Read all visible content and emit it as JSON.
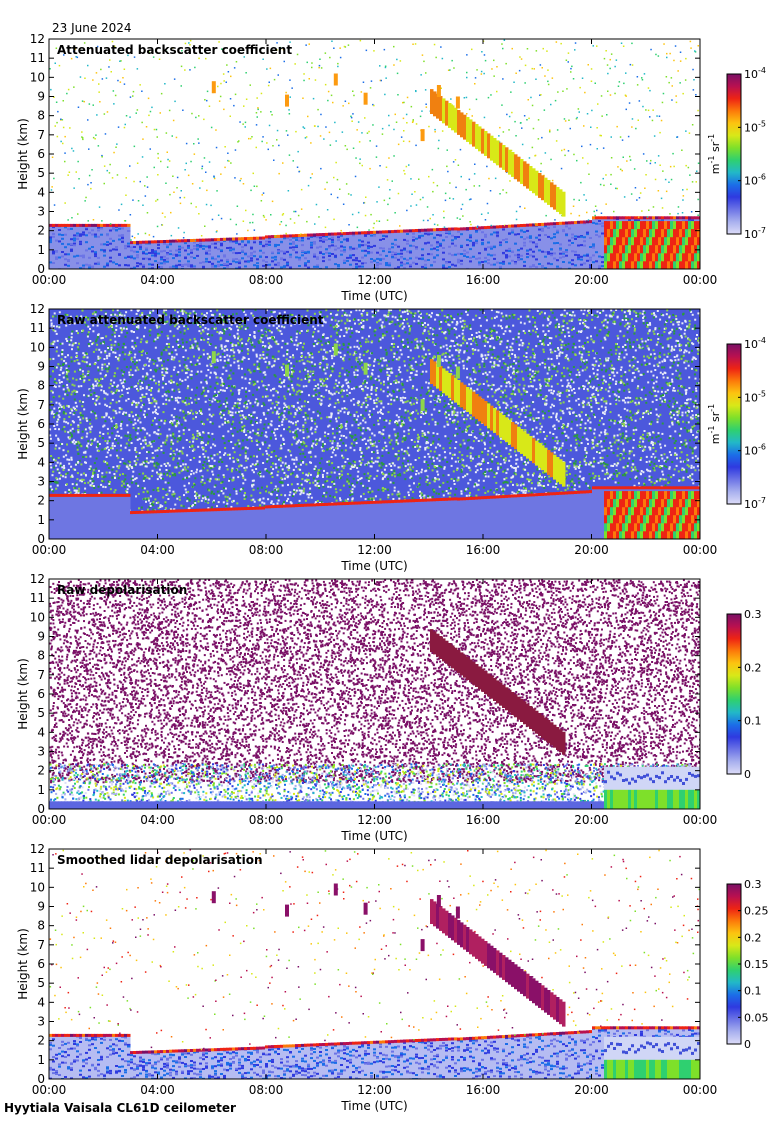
{
  "date": "23 June 2024",
  "footer": "Hyytiala Vaisala CL61D ceilometer",
  "colors": {
    "spectrum": [
      "#dcdcf8",
      "#a8b0ee",
      "#6c74e6",
      "#2f3ae0",
      "#1b6ee8",
      "#22b8c8",
      "#2fd070",
      "#7ee02a",
      "#d8e818",
      "#fcc410",
      "#fc7a0a",
      "#ee2414",
      "#b81050",
      "#7a1066"
    ],
    "frame": "#000000",
    "background": "#ffffff"
  },
  "chart_data": [
    {
      "type": "heatmap",
      "title": "Attenuated backscatter coefficient",
      "xlabel": "Time (UTC)",
      "ylabel": "Height (km)",
      "x_ticks": [
        "00:00",
        "04:00",
        "08:00",
        "12:00",
        "16:00",
        "20:00",
        "00:00"
      ],
      "x_range_hours": [
        0,
        24
      ],
      "y_ticks": [
        "0",
        "1",
        "2",
        "3",
        "4",
        "5",
        "6",
        "7",
        "8",
        "9",
        "10",
        "11",
        "12"
      ],
      "y_range_km": [
        0,
        12
      ],
      "colorbar": {
        "scale": "log",
        "ticks": [
          "10^-7",
          "10^-6",
          "10^-5",
          "10^-4"
        ],
        "tick_values": [
          -7,
          -6,
          -5,
          -4
        ],
        "range": [
          -7,
          -4
        ],
        "label": "m^-1 sr^-1",
        "label_base": "m",
        "label_exp1": "-1",
        "label_mid": " sr",
        "label_exp2": "-1"
      },
      "mode": "bsc"
    },
    {
      "type": "heatmap",
      "title": "Raw attenuated backscatter coefficient",
      "xlabel": "Time (UTC)",
      "ylabel": "Height (km)",
      "x_ticks": [
        "00:00",
        "04:00",
        "08:00",
        "12:00",
        "16:00",
        "20:00",
        "00:00"
      ],
      "x_range_hours": [
        0,
        24
      ],
      "y_ticks": [
        "0",
        "1",
        "2",
        "3",
        "4",
        "5",
        "6",
        "7",
        "8",
        "9",
        "10",
        "11",
        "12"
      ],
      "y_range_km": [
        0,
        12
      ],
      "colorbar": {
        "scale": "log",
        "ticks": [
          "10^-7",
          "10^-6",
          "10^-5",
          "10^-4"
        ],
        "tick_values": [
          -7,
          -6,
          -5,
          -4
        ],
        "range": [
          -7,
          -4
        ],
        "label": "m^-1 sr^-1",
        "label_base": "m",
        "label_exp1": "-1",
        "label_mid": " sr",
        "label_exp2": "-1"
      },
      "mode": "rawbsc"
    },
    {
      "type": "heatmap",
      "title": "Raw depolarisation",
      "xlabel": "Time (UTC)",
      "ylabel": "Height (km)",
      "x_ticks": [
        "00:00",
        "04:00",
        "08:00",
        "12:00",
        "16:00",
        "20:00",
        "00:00"
      ],
      "x_range_hours": [
        0,
        24
      ],
      "y_ticks": [
        "0",
        "1",
        "2",
        "3",
        "4",
        "5",
        "6",
        "7",
        "8",
        "9",
        "10",
        "11",
        "12"
      ],
      "y_range_km": [
        0,
        12
      ],
      "colorbar": {
        "scale": "linear",
        "ticks": [
          "0",
          "0.1",
          "0.2",
          "0.3"
        ],
        "tick_values": [
          0,
          0.1,
          0.2,
          0.3
        ],
        "range": [
          0,
          0.3
        ]
      },
      "mode": "rawdepol"
    },
    {
      "type": "heatmap",
      "title": "Smoothed lidar depolarisation",
      "xlabel": "Time (UTC)",
      "ylabel": "Height (km)",
      "x_ticks": [
        "00:00",
        "04:00",
        "08:00",
        "12:00",
        "16:00",
        "20:00",
        "00:00"
      ],
      "x_range_hours": [
        0,
        24
      ],
      "y_ticks": [
        "0",
        "1",
        "2",
        "3",
        "4",
        "5",
        "6",
        "7",
        "8",
        "9",
        "10",
        "11",
        "12"
      ],
      "y_range_km": [
        0,
        12
      ],
      "colorbar": {
        "scale": "linear",
        "ticks": [
          "0",
          "0.05",
          "0.1",
          "0.15",
          "0.2",
          "0.25",
          "0.3"
        ],
        "tick_values": [
          0,
          0.05,
          0.1,
          0.15,
          0.2,
          0.25,
          0.3
        ],
        "range": [
          0,
          0.3
        ]
      },
      "mode": "smdepol"
    }
  ]
}
